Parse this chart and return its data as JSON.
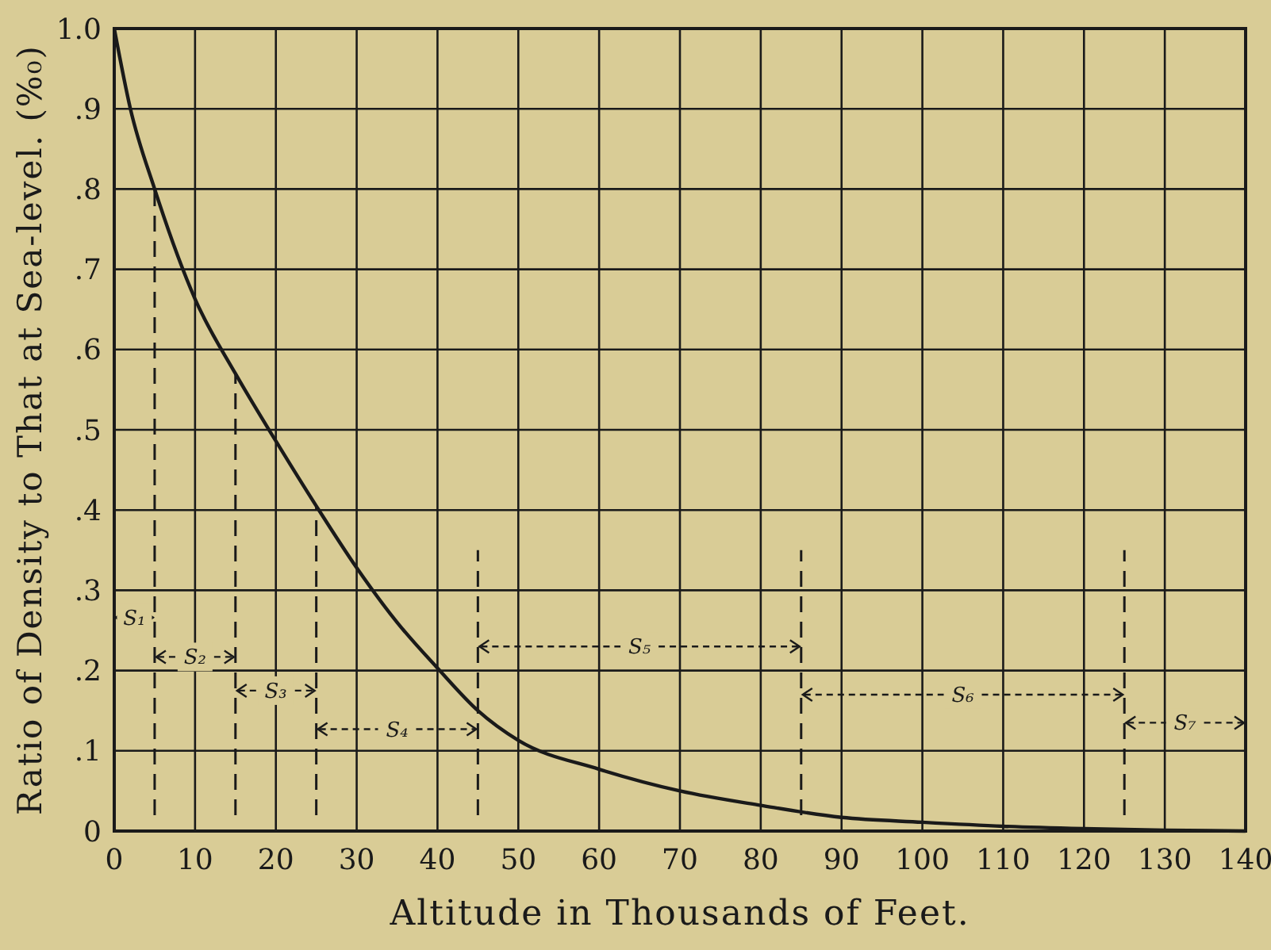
{
  "chart_data": {
    "type": "line",
    "xlabel": "Altitude in Thousands of Feet.",
    "ylabel": "Ratio of Density to That at Sea-level. (%₀)",
    "x": [
      0,
      2,
      5,
      10,
      15,
      20,
      25,
      30,
      35,
      40,
      45,
      50,
      60,
      70,
      80,
      90,
      100,
      110,
      120,
      130,
      140
    ],
    "series": [
      {
        "color": "#1a1a1a",
        "values": [
          1.0,
          0.9,
          0.8,
          0.663,
          0.57,
          0.486,
          0.405,
          0.328,
          0.26,
          0.203,
          0.15,
          0.113,
          0.077,
          0.05,
          0.032,
          0.017,
          0.011,
          0.006,
          0.003,
          0.001,
          0
        ]
      }
    ],
    "xlim": [
      0,
      140
    ],
    "xticks": [
      0,
      10,
      20,
      30,
      40,
      50,
      60,
      70,
      80,
      90,
      100,
      110,
      120,
      130,
      140
    ],
    "ylim": [
      0,
      1.0
    ],
    "yticks": [
      {
        "value": 0,
        "label": "0"
      },
      {
        "value": 0.1,
        "label": ".1"
      },
      {
        "value": 0.2,
        "label": ".2"
      },
      {
        "value": 0.3,
        "label": ".3"
      },
      {
        "value": 0.4,
        "label": ".4"
      },
      {
        "value": 0.5,
        "label": ".5"
      },
      {
        "value": 0.6,
        "label": ".6"
      },
      {
        "value": 0.7,
        "label": ".7"
      },
      {
        "value": 0.8,
        "label": ".8"
      },
      {
        "value": 0.9,
        "label": ".9"
      },
      {
        "value": 1.0,
        "label": "1.0"
      }
    ],
    "grid": true,
    "marker": "none",
    "line_style": "solid",
    "ref_lines": [
      {
        "axis": "x",
        "value": 5,
        "line_style": "dashed"
      },
      {
        "axis": "x",
        "value": 15,
        "line_style": "dashed"
      },
      {
        "axis": "x",
        "value": 25,
        "line_style": "dashed"
      },
      {
        "axis": "x",
        "value": 45,
        "line_style": "dashed"
      },
      {
        "axis": "x",
        "value": 85,
        "line_style": "dashed"
      },
      {
        "axis": "x",
        "value": 125,
        "line_style": "dashed"
      }
    ],
    "annotations": [
      {
        "text": "S₁",
        "x": 5,
        "y": 0.266
      },
      {
        "text": "S₂",
        "x": 15,
        "y": 0.217
      },
      {
        "text": "S₃",
        "x": 25,
        "y": 0.175
      },
      {
        "text": "S₄",
        "x": 45,
        "y": 0.127
      },
      {
        "text": "S₅",
        "x": 85,
        "y": 0.23
      },
      {
        "text": "S₆",
        "x": 125,
        "y": 0.17
      },
      {
        "text": "S₇",
        "x": 125,
        "y": 0.135
      }
    ]
  }
}
